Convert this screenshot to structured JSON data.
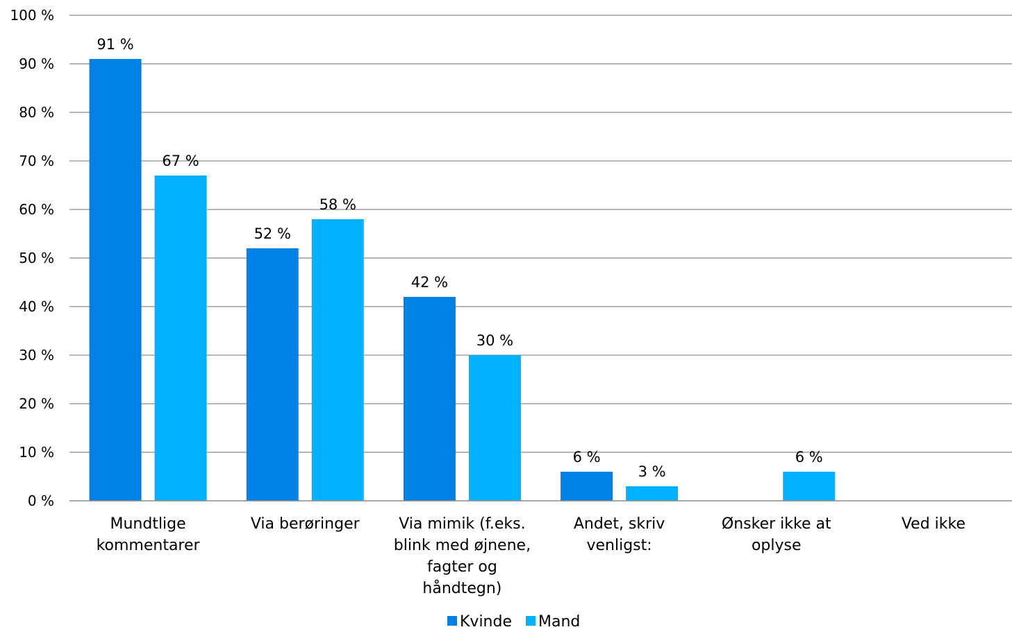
{
  "chart_data": {
    "type": "bar",
    "categories": [
      [
        "Mundtlige",
        "kommentarer"
      ],
      [
        "Via berøringer"
      ],
      [
        "Via mimik (f.eks.",
        "blink med øjnene,",
        "fagter og",
        "håndtegn)"
      ],
      [
        "Andet, skriv",
        "venligst:"
      ],
      [
        "Ønsker ikke at",
        "oplyse"
      ],
      [
        "Ved ikke"
      ]
    ],
    "series": [
      {
        "name": "Kvinde",
        "color": "#0081E6",
        "values": [
          91,
          52,
          42,
          6,
          null,
          null
        ],
        "labels": [
          "91 %",
          "52 %",
          "42 %",
          "6 %",
          null,
          null
        ]
      },
      {
        "name": "Mand",
        "color": "#00B2FF",
        "values": [
          67,
          58,
          30,
          3,
          6,
          null
        ],
        "labels": [
          "67 %",
          "58 %",
          "30 %",
          "3 %",
          "6 %",
          null
        ]
      }
    ],
    "ylim": [
      0,
      100
    ],
    "yticks": [
      "0 %",
      "10 %",
      "20 %",
      "30 %",
      "40 %",
      "50 %",
      "60 %",
      "70 %",
      "80 %",
      "90 %",
      "100 %"
    ],
    "grid": true,
    "legend_position": "bottom-center"
  }
}
